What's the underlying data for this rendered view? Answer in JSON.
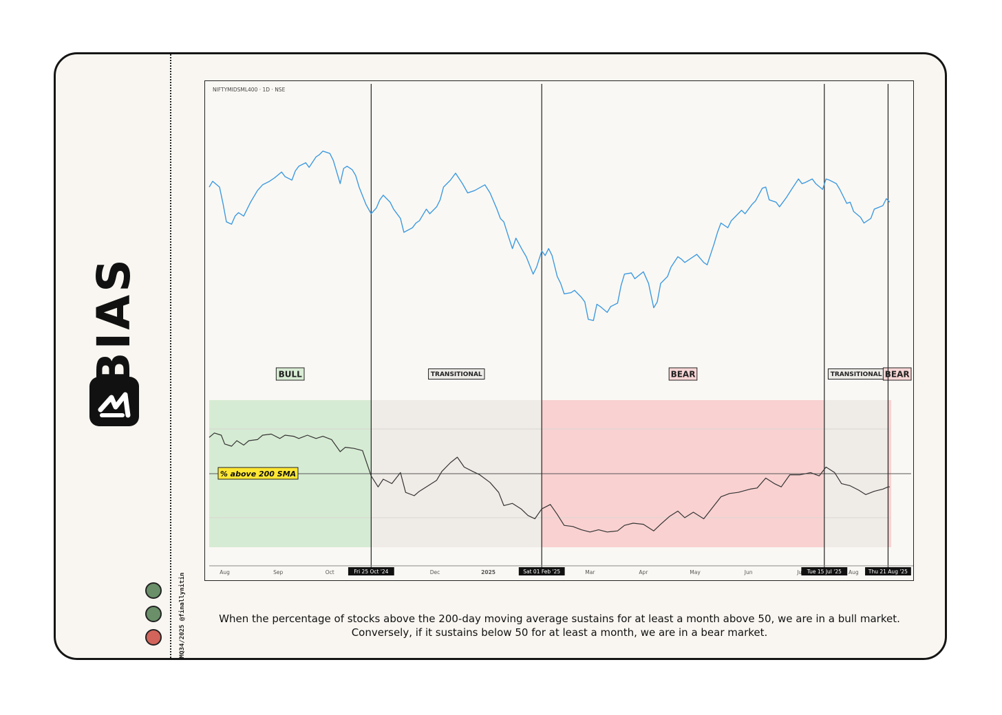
{
  "brand": {
    "name": "BIAS"
  },
  "credit": "MQ34/2025 @finallynitin",
  "status_dots": [
    {
      "color": "#6a8f69"
    },
    {
      "color": "#6a8f69"
    },
    {
      "color": "#d2645b"
    }
  ],
  "caption": "When the percentage of stocks above the 200-day moving average sustains for at least a month above 50, we are in a bull market. Conversely, if it sustains below 50 for at least a month, we are in a bear market.",
  "chart_data": {
    "type": "line",
    "symbol_label": "NIFTYMIDSML400 · 1D · NSE",
    "indicator_label": "% above 200 SMA",
    "x_start": "2024-07-23",
    "x_end": "2025-09-05",
    "month_ticks": [
      {
        "date": "2024-08-01",
        "label": "Aug"
      },
      {
        "date": "2024-09-01",
        "label": "Sep"
      },
      {
        "date": "2024-10-01",
        "label": "Oct"
      },
      {
        "date": "2024-12-01",
        "label": "Dec"
      },
      {
        "date": "2025-01-01",
        "label": "2025"
      },
      {
        "date": "2025-03-01",
        "label": "Mar"
      },
      {
        "date": "2025-04-01",
        "label": "Apr"
      },
      {
        "date": "2025-05-01",
        "label": "May"
      },
      {
        "date": "2025-06-01",
        "label": "Jun"
      },
      {
        "date": "2025-07-01",
        "label": "Jul"
      },
      {
        "date": "2025-08-01",
        "label": "Aug"
      }
    ],
    "markers": [
      {
        "date": "2024-10-25",
        "label": "Fri 25 Oct '24"
      },
      {
        "date": "2025-02-01",
        "label": "Sat 01 Feb '25"
      },
      {
        "date": "2025-07-15",
        "label": "Tue 15 Jul '25"
      },
      {
        "date": "2025-08-21",
        "label": "Thu 21 Aug '25"
      }
    ],
    "regimes": [
      {
        "label": "BULL",
        "start": "2024-07-23",
        "end": "2024-10-25",
        "color": "#d6ebd3",
        "badge_bg": "#d8edd4"
      },
      {
        "label": "TRANSITIONAL",
        "start": "2024-10-25",
        "end": "2025-02-01",
        "color": "#efebe7",
        "badge_bg": "#ecebe8"
      },
      {
        "label": "BEAR",
        "start": "2025-02-01",
        "end": "2025-07-15",
        "color": "#f9d1d1",
        "badge_bg": "#f9d6d6"
      },
      {
        "label": "TRANSITIONAL",
        "start": "2025-07-15",
        "end": "2025-08-21",
        "color": "#efebe7",
        "badge_bg": "#ecebe8"
      },
      {
        "label": "BEAR",
        "start": "2025-08-21",
        "end": "2025-09-05",
        "color": "#f9d1d1",
        "badge_bg": "#f9d6d6"
      }
    ],
    "price_color": "#3d9ae0",
    "indicator_color": "#333333",
    "price_series": [
      [
        "2024-07-23",
        16.3
      ],
      [
        "2024-07-25",
        16.55
      ],
      [
        "2024-07-29",
        16.3
      ],
      [
        "2024-07-31",
        15.6
      ],
      [
        "2024-08-02",
        14.8
      ],
      [
        "2024-08-05",
        14.7
      ],
      [
        "2024-08-07",
        15.05
      ],
      [
        "2024-08-09",
        15.2
      ],
      [
        "2024-08-12",
        15.05
      ],
      [
        "2024-08-14",
        15.35
      ],
      [
        "2024-08-16",
        15.65
      ],
      [
        "2024-08-20",
        16.15
      ],
      [
        "2024-08-23",
        16.4
      ],
      [
        "2024-08-27",
        16.55
      ],
      [
        "2024-08-30",
        16.7
      ],
      [
        "2024-09-03",
        16.95
      ],
      [
        "2024-09-05",
        16.75
      ],
      [
        "2024-09-09",
        16.6
      ],
      [
        "2024-09-11",
        17.0
      ],
      [
        "2024-09-13",
        17.2
      ],
      [
        "2024-09-17",
        17.35
      ],
      [
        "2024-09-19",
        17.15
      ],
      [
        "2024-09-23",
        17.6
      ],
      [
        "2024-09-25",
        17.7
      ],
      [
        "2024-09-27",
        17.85
      ],
      [
        "2024-10-01",
        17.75
      ],
      [
        "2024-10-03",
        17.45
      ],
      [
        "2024-10-07",
        16.45
      ],
      [
        "2024-10-09",
        17.1
      ],
      [
        "2024-10-11",
        17.2
      ],
      [
        "2024-10-14",
        17.05
      ],
      [
        "2024-10-16",
        16.8
      ],
      [
        "2024-10-18",
        16.3
      ],
      [
        "2024-10-22",
        15.55
      ],
      [
        "2024-10-25",
        15.15
      ],
      [
        "2024-10-28",
        15.4
      ],
      [
        "2024-10-30",
        15.75
      ],
      [
        "2024-11-01",
        15.95
      ],
      [
        "2024-11-05",
        15.65
      ],
      [
        "2024-11-07",
        15.35
      ],
      [
        "2024-11-11",
        14.95
      ],
      [
        "2024-11-13",
        14.35
      ],
      [
        "2024-11-18",
        14.55
      ],
      [
        "2024-11-20",
        14.75
      ],
      [
        "2024-11-22",
        14.85
      ],
      [
        "2024-11-26",
        15.35
      ],
      [
        "2024-11-28",
        15.15
      ],
      [
        "2024-12-02",
        15.45
      ],
      [
        "2024-12-04",
        15.75
      ],
      [
        "2024-12-06",
        16.3
      ],
      [
        "2024-12-10",
        16.6
      ],
      [
        "2024-12-13",
        16.9
      ],
      [
        "2024-12-17",
        16.45
      ],
      [
        "2024-12-20",
        16.05
      ],
      [
        "2024-12-24",
        16.15
      ],
      [
        "2024-12-30",
        16.4
      ],
      [
        "2025-01-02",
        16.05
      ],
      [
        "2025-01-06",
        15.35
      ],
      [
        "2025-01-08",
        14.95
      ],
      [
        "2025-01-10",
        14.8
      ],
      [
        "2025-01-13",
        14.1
      ],
      [
        "2025-01-15",
        13.65
      ],
      [
        "2025-01-17",
        14.1
      ],
      [
        "2025-01-21",
        13.55
      ],
      [
        "2025-01-23",
        13.3
      ],
      [
        "2025-01-27",
        12.55
      ],
      [
        "2025-01-29",
        12.85
      ],
      [
        "2025-02-01",
        13.55
      ],
      [
        "2025-02-03",
        13.35
      ],
      [
        "2025-02-05",
        13.65
      ],
      [
        "2025-02-07",
        13.35
      ],
      [
        "2025-02-10",
        12.45
      ],
      [
        "2025-02-12",
        12.15
      ],
      [
        "2025-02-14",
        11.7
      ],
      [
        "2025-02-18",
        11.75
      ],
      [
        "2025-02-20",
        11.85
      ],
      [
        "2025-02-24",
        11.55
      ],
      [
        "2025-02-26",
        11.35
      ],
      [
        "2025-02-28",
        10.6
      ],
      [
        "2025-03-03",
        10.55
      ],
      [
        "2025-03-05",
        11.25
      ],
      [
        "2025-03-07",
        11.15
      ],
      [
        "2025-03-11",
        10.9
      ],
      [
        "2025-03-13",
        11.15
      ],
      [
        "2025-03-17",
        11.3
      ],
      [
        "2025-03-19",
        12.05
      ],
      [
        "2025-03-21",
        12.55
      ],
      [
        "2025-03-25",
        12.6
      ],
      [
        "2025-03-27",
        12.35
      ],
      [
        "2025-04-01",
        12.65
      ],
      [
        "2025-04-04",
        12.15
      ],
      [
        "2025-04-07",
        11.1
      ],
      [
        "2025-04-09",
        11.35
      ],
      [
        "2025-04-11",
        12.15
      ],
      [
        "2025-04-15",
        12.45
      ],
      [
        "2025-04-17",
        12.85
      ],
      [
        "2025-04-21",
        13.3
      ],
      [
        "2025-04-23",
        13.2
      ],
      [
        "2025-04-25",
        13.05
      ],
      [
        "2025-04-29",
        13.25
      ],
      [
        "2025-05-02",
        13.4
      ],
      [
        "2025-05-06",
        13.05
      ],
      [
        "2025-05-08",
        12.95
      ],
      [
        "2025-05-12",
        13.85
      ],
      [
        "2025-05-14",
        14.35
      ],
      [
        "2025-05-16",
        14.75
      ],
      [
        "2025-05-20",
        14.55
      ],
      [
        "2025-05-22",
        14.85
      ],
      [
        "2025-05-26",
        15.15
      ],
      [
        "2025-05-28",
        15.3
      ],
      [
        "2025-05-30",
        15.15
      ],
      [
        "2025-06-03",
        15.55
      ],
      [
        "2025-06-05",
        15.7
      ],
      [
        "2025-06-09",
        16.25
      ],
      [
        "2025-06-11",
        16.3
      ],
      [
        "2025-06-13",
        15.75
      ],
      [
        "2025-06-17",
        15.65
      ],
      [
        "2025-06-19",
        15.45
      ],
      [
        "2025-06-23",
        15.85
      ],
      [
        "2025-06-26",
        16.2
      ],
      [
        "2025-06-30",
        16.65
      ],
      [
        "2025-07-02",
        16.45
      ],
      [
        "2025-07-04",
        16.5
      ],
      [
        "2025-07-08",
        16.65
      ],
      [
        "2025-07-10",
        16.45
      ],
      [
        "2025-07-14",
        16.2
      ],
      [
        "2025-07-16",
        16.65
      ],
      [
        "2025-07-18",
        16.6
      ],
      [
        "2025-07-22",
        16.45
      ],
      [
        "2025-07-24",
        16.2
      ],
      [
        "2025-07-28",
        15.6
      ],
      [
        "2025-07-30",
        15.65
      ],
      [
        "2025-08-01",
        15.25
      ],
      [
        "2025-08-05",
        15.0
      ],
      [
        "2025-08-07",
        14.75
      ],
      [
        "2025-08-11",
        14.95
      ],
      [
        "2025-08-13",
        15.35
      ],
      [
        "2025-08-18",
        15.5
      ],
      [
        "2025-08-20",
        15.8
      ],
      [
        "2025-08-22",
        15.65
      ]
    ],
    "indicator_series": [
      [
        "2024-07-23",
        1.65
      ],
      [
        "2024-07-26",
        1.85
      ],
      [
        "2024-07-30",
        1.75
      ],
      [
        "2024-08-01",
        1.35
      ],
      [
        "2024-08-05",
        1.25
      ],
      [
        "2024-08-08",
        1.5
      ],
      [
        "2024-08-12",
        1.3
      ],
      [
        "2024-08-15",
        1.5
      ],
      [
        "2024-08-20",
        1.55
      ],
      [
        "2024-08-23",
        1.75
      ],
      [
        "2024-08-28",
        1.8
      ],
      [
        "2024-09-02",
        1.6
      ],
      [
        "2024-09-05",
        1.75
      ],
      [
        "2024-09-10",
        1.7
      ],
      [
        "2024-09-13",
        1.6
      ],
      [
        "2024-09-18",
        1.75
      ],
      [
        "2024-09-23",
        1.6
      ],
      [
        "2024-09-27",
        1.7
      ],
      [
        "2024-10-02",
        1.55
      ],
      [
        "2024-10-07",
        1.0
      ],
      [
        "2024-10-10",
        1.2
      ],
      [
        "2024-10-15",
        1.15
      ],
      [
        "2024-10-20",
        1.05
      ],
      [
        "2024-10-25",
        -0.1
      ],
      [
        "2024-10-29",
        -0.6
      ],
      [
        "2024-11-01",
        -0.25
      ],
      [
        "2024-11-06",
        -0.45
      ],
      [
        "2024-11-11",
        0.05
      ],
      [
        "2024-11-14",
        -0.85
      ],
      [
        "2024-11-19",
        -1.0
      ],
      [
        "2024-11-22",
        -0.8
      ],
      [
        "2024-11-27",
        -0.55
      ],
      [
        "2024-12-02",
        -0.3
      ],
      [
        "2024-12-05",
        0.1
      ],
      [
        "2024-12-10",
        0.5
      ],
      [
        "2024-12-14",
        0.75
      ],
      [
        "2024-12-18",
        0.3
      ],
      [
        "2024-12-23",
        0.1
      ],
      [
        "2024-12-27",
        -0.05
      ],
      [
        "2025-01-02",
        -0.4
      ],
      [
        "2025-01-07",
        -0.85
      ],
      [
        "2025-01-10",
        -1.45
      ],
      [
        "2025-01-15",
        -1.35
      ],
      [
        "2025-01-20",
        -1.6
      ],
      [
        "2025-01-24",
        -1.9
      ],
      [
        "2025-01-28",
        -2.05
      ],
      [
        "2025-02-01",
        -1.6
      ],
      [
        "2025-02-06",
        -1.4
      ],
      [
        "2025-02-10",
        -1.85
      ],
      [
        "2025-02-14",
        -2.35
      ],
      [
        "2025-02-19",
        -2.4
      ],
      [
        "2025-02-24",
        -2.55
      ],
      [
        "2025-03-01",
        -2.65
      ],
      [
        "2025-03-06",
        -2.55
      ],
      [
        "2025-03-11",
        -2.65
      ],
      [
        "2025-03-17",
        -2.6
      ],
      [
        "2025-03-21",
        -2.35
      ],
      [
        "2025-03-26",
        -2.25
      ],
      [
        "2025-04-01",
        -2.3
      ],
      [
        "2025-04-07",
        -2.6
      ],
      [
        "2025-04-11",
        -2.3
      ],
      [
        "2025-04-16",
        -1.95
      ],
      [
        "2025-04-21",
        -1.7
      ],
      [
        "2025-04-25",
        -2.0
      ],
      [
        "2025-04-30",
        -1.75
      ],
      [
        "2025-05-06",
        -2.05
      ],
      [
        "2025-05-12",
        -1.45
      ],
      [
        "2025-05-16",
        -1.05
      ],
      [
        "2025-05-21",
        -0.9
      ],
      [
        "2025-05-26",
        -0.85
      ],
      [
        "2025-06-02",
        -0.7
      ],
      [
        "2025-06-06",
        -0.65
      ],
      [
        "2025-06-11",
        -0.2
      ],
      [
        "2025-06-16",
        -0.45
      ],
      [
        "2025-06-20",
        -0.6
      ],
      [
        "2025-06-25",
        -0.05
      ],
      [
        "2025-07-01",
        -0.05
      ],
      [
        "2025-07-07",
        0.05
      ],
      [
        "2025-07-12",
        -0.1
      ],
      [
        "2025-07-16",
        0.3
      ],
      [
        "2025-07-21",
        0.05
      ],
      [
        "2025-07-25",
        -0.45
      ],
      [
        "2025-07-30",
        -0.55
      ],
      [
        "2025-08-04",
        -0.75
      ],
      [
        "2025-08-08",
        -0.95
      ],
      [
        "2025-08-13",
        -0.8
      ],
      [
        "2025-08-18",
        -0.7
      ],
      [
        "2025-08-21",
        -0.6
      ],
      [
        "2025-08-22",
        -0.6
      ]
    ]
  }
}
